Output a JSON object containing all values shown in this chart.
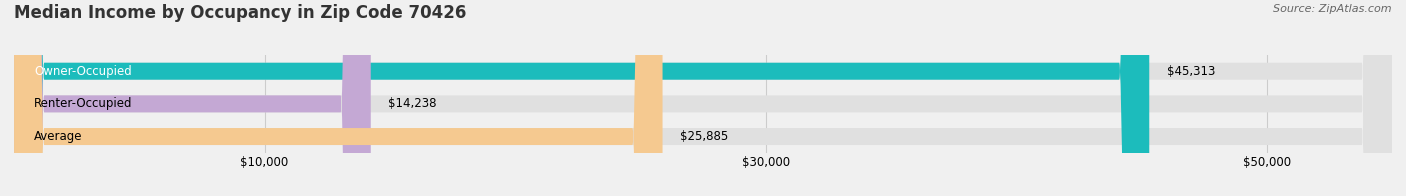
{
  "title": "Median Income by Occupancy in Zip Code 70426",
  "source": "Source: ZipAtlas.com",
  "categories": [
    "Owner-Occupied",
    "Renter-Occupied",
    "Average"
  ],
  "values": [
    45313,
    14238,
    25885
  ],
  "bar_colors": [
    "#1cbcbc",
    "#c4a8d4",
    "#f5c990"
  ],
  "value_labels": [
    "$45,313",
    "$14,238",
    "$25,885"
  ],
  "xlim": [
    0,
    55000
  ],
  "xticks": [
    10000,
    30000,
    50000
  ],
  "xticklabels": [
    "$10,000",
    "$30,000",
    "$50,000"
  ],
  "background_color": "#f0f0f0",
  "bar_bg_color": "#e0e0e0",
  "title_fontsize": 12,
  "label_fontsize": 8.5,
  "value_fontsize": 8.5,
  "bar_height": 0.52
}
